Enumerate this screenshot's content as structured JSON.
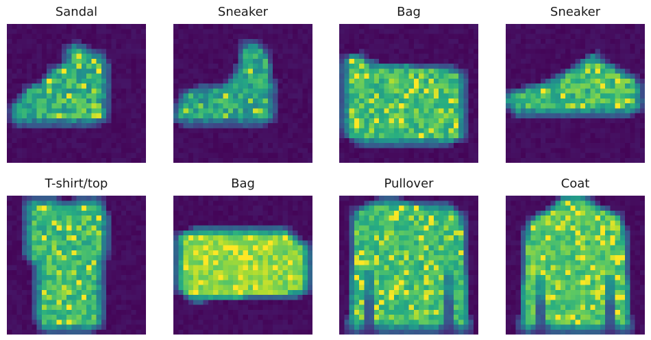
{
  "colormap": "viridis",
  "background": "#ffffff",
  "panels": [
    {
      "title": "Sandal",
      "icon": "sneaker-low-image"
    },
    {
      "title": "Sneaker",
      "icon": "boot-image"
    },
    {
      "title": "Bag",
      "icon": "bag-image"
    },
    {
      "title": "Sneaker",
      "icon": "sneaker-image"
    },
    {
      "title": "T-shirt/top",
      "icon": "tshirt-image"
    },
    {
      "title": "Bag",
      "icon": "bag-image"
    },
    {
      "title": "Pullover",
      "icon": "pullover-image"
    },
    {
      "title": "Coat",
      "icon": "coat-image"
    }
  ]
}
